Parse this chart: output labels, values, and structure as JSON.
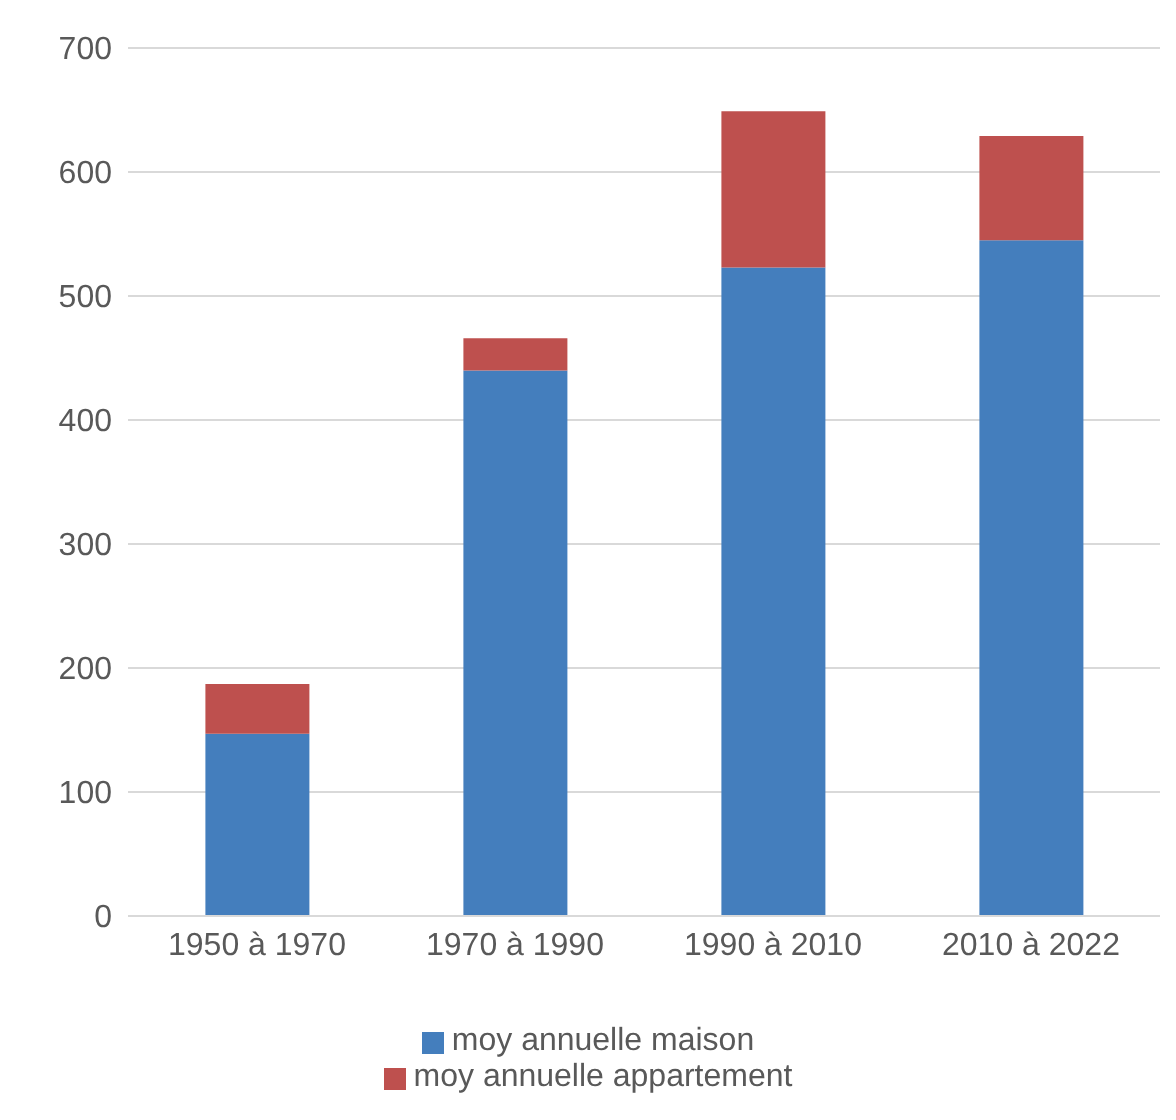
{
  "chart_data": {
    "type": "bar",
    "stacked": true,
    "categories": [
      "1950 à 1970",
      "1970 à 1990",
      "1990 à 2010",
      "2010 à 2022"
    ],
    "series": [
      {
        "name": "moy annuelle maison",
        "color": "#447ebd",
        "values": [
          147,
          440,
          523,
          545
        ]
      },
      {
        "name": "moy annuelle appartement",
        "color": "#be504e",
        "values": [
          40,
          26,
          126,
          84
        ]
      }
    ],
    "ylim": [
      0,
      700
    ],
    "yticks": [
      0,
      100,
      200,
      300,
      400,
      500,
      600,
      700
    ],
    "grid": "y",
    "legend": "bottom"
  }
}
